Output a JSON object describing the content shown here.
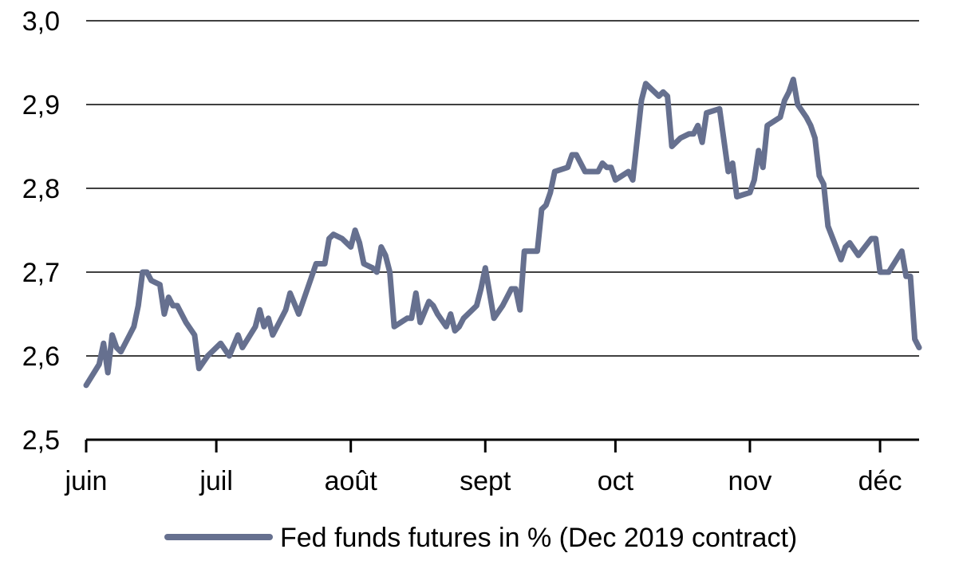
{
  "chart_data": {
    "type": "line",
    "title": "",
    "xlabel": "",
    "ylabel": "",
    "ylim": [
      2.5,
      3.0
    ],
    "y_ticks": [
      "2,5",
      "2,6",
      "2,7",
      "2,8",
      "2,9",
      "3,0"
    ],
    "y_tick_values": [
      2.5,
      2.6,
      2.7,
      2.8,
      2.9,
      3.0
    ],
    "x_tick_labels": [
      "juin",
      "juil",
      "août",
      "sept",
      "oct",
      "nov",
      "déc"
    ],
    "x_tick_days": [
      0,
      30,
      61,
      92,
      122,
      153,
      183
    ],
    "grid": "horizontal",
    "legend_position": "bottom",
    "series": [
      {
        "name": "Fed funds futures in % (Dec 2019 contract)",
        "color": "#66708f",
        "points": [
          [
            0,
            2.565
          ],
          [
            3,
            2.59
          ],
          [
            4,
            2.615
          ],
          [
            5,
            2.58
          ],
          [
            6,
            2.625
          ],
          [
            7,
            2.61
          ],
          [
            8,
            2.605
          ],
          [
            10,
            2.625
          ],
          [
            11,
            2.635
          ],
          [
            12,
            2.66
          ],
          [
            13,
            2.7
          ],
          [
            14,
            2.7
          ],
          [
            15,
            2.69
          ],
          [
            17,
            2.685
          ],
          [
            18,
            2.65
          ],
          [
            19,
            2.67
          ],
          [
            20,
            2.66
          ],
          [
            21,
            2.66
          ],
          [
            23,
            2.64
          ],
          [
            25,
            2.625
          ],
          [
            26,
            2.585
          ],
          [
            28,
            2.6
          ],
          [
            31,
            2.615
          ],
          [
            33,
            2.6
          ],
          [
            35,
            2.625
          ],
          [
            36,
            2.61
          ],
          [
            39,
            2.635
          ],
          [
            40,
            2.655
          ],
          [
            41,
            2.635
          ],
          [
            42,
            2.645
          ],
          [
            43,
            2.625
          ],
          [
            45,
            2.645
          ],
          [
            46,
            2.655
          ],
          [
            47,
            2.675
          ],
          [
            49,
            2.65
          ],
          [
            51,
            2.68
          ],
          [
            53,
            2.71
          ],
          [
            55,
            2.71
          ],
          [
            56,
            2.74
          ],
          [
            57,
            2.745
          ],
          [
            59,
            2.74
          ],
          [
            60,
            2.735
          ],
          [
            61,
            2.73
          ],
          [
            62,
            2.75
          ],
          [
            63,
            2.735
          ],
          [
            64,
            2.71
          ],
          [
            66,
            2.705
          ],
          [
            67,
            2.7
          ],
          [
            68,
            2.73
          ],
          [
            69,
            2.72
          ],
          [
            70,
            2.7
          ],
          [
            71,
            2.635
          ],
          [
            74,
            2.645
          ],
          [
            75,
            2.645
          ],
          [
            76,
            2.675
          ],
          [
            77,
            2.64
          ],
          [
            79,
            2.665
          ],
          [
            80,
            2.66
          ],
          [
            81,
            2.65
          ],
          [
            83,
            2.635
          ],
          [
            84,
            2.65
          ],
          [
            85,
            2.63
          ],
          [
            86,
            2.635
          ],
          [
            87,
            2.645
          ],
          [
            90,
            2.66
          ],
          [
            91,
            2.68
          ],
          [
            92,
            2.705
          ],
          [
            93,
            2.675
          ],
          [
            94,
            2.645
          ],
          [
            96,
            2.66
          ],
          [
            98,
            2.68
          ],
          [
            99,
            2.68
          ],
          [
            100,
            2.655
          ],
          [
            101,
            2.725
          ],
          [
            104,
            2.725
          ],
          [
            105,
            2.775
          ],
          [
            106,
            2.78
          ],
          [
            107,
            2.795
          ],
          [
            108,
            2.82
          ],
          [
            111,
            2.825
          ],
          [
            112,
            2.84
          ],
          [
            113,
            2.84
          ],
          [
            115,
            2.82
          ],
          [
            118,
            2.82
          ],
          [
            119,
            2.83
          ],
          [
            120,
            2.825
          ],
          [
            121,
            2.825
          ],
          [
            122,
            2.81
          ],
          [
            125,
            2.82
          ],
          [
            126,
            2.81
          ],
          [
            128,
            2.905
          ],
          [
            129,
            2.925
          ],
          [
            132,
            2.91
          ],
          [
            133,
            2.915
          ],
          [
            134,
            2.91
          ],
          [
            135,
            2.85
          ],
          [
            137,
            2.86
          ],
          [
            139,
            2.865
          ],
          [
            140,
            2.865
          ],
          [
            141,
            2.875
          ],
          [
            142,
            2.855
          ],
          [
            143,
            2.89
          ],
          [
            146,
            2.895
          ],
          [
            148,
            2.82
          ],
          [
            149,
            2.83
          ],
          [
            150,
            2.79
          ],
          [
            153,
            2.795
          ],
          [
            154,
            2.81
          ],
          [
            155,
            2.845
          ],
          [
            156,
            2.825
          ],
          [
            157,
            2.875
          ],
          [
            160,
            2.885
          ],
          [
            161,
            2.905
          ],
          [
            162,
            2.915
          ],
          [
            163,
            2.93
          ],
          [
            164,
            2.9
          ],
          [
            166,
            2.885
          ],
          [
            167,
            2.875
          ],
          [
            168,
            2.86
          ],
          [
            169,
            2.815
          ],
          [
            170,
            2.805
          ],
          [
            171,
            2.755
          ],
          [
            174,
            2.715
          ],
          [
            175,
            2.73
          ],
          [
            176,
            2.735
          ],
          [
            178,
            2.72
          ],
          [
            181,
            2.74
          ],
          [
            182,
            2.74
          ],
          [
            183,
            2.7
          ],
          [
            185,
            2.7
          ],
          [
            188,
            2.725
          ],
          [
            189,
            2.695
          ],
          [
            190,
            2.695
          ],
          [
            191,
            2.62
          ],
          [
            192,
            2.61
          ]
        ]
      }
    ]
  }
}
